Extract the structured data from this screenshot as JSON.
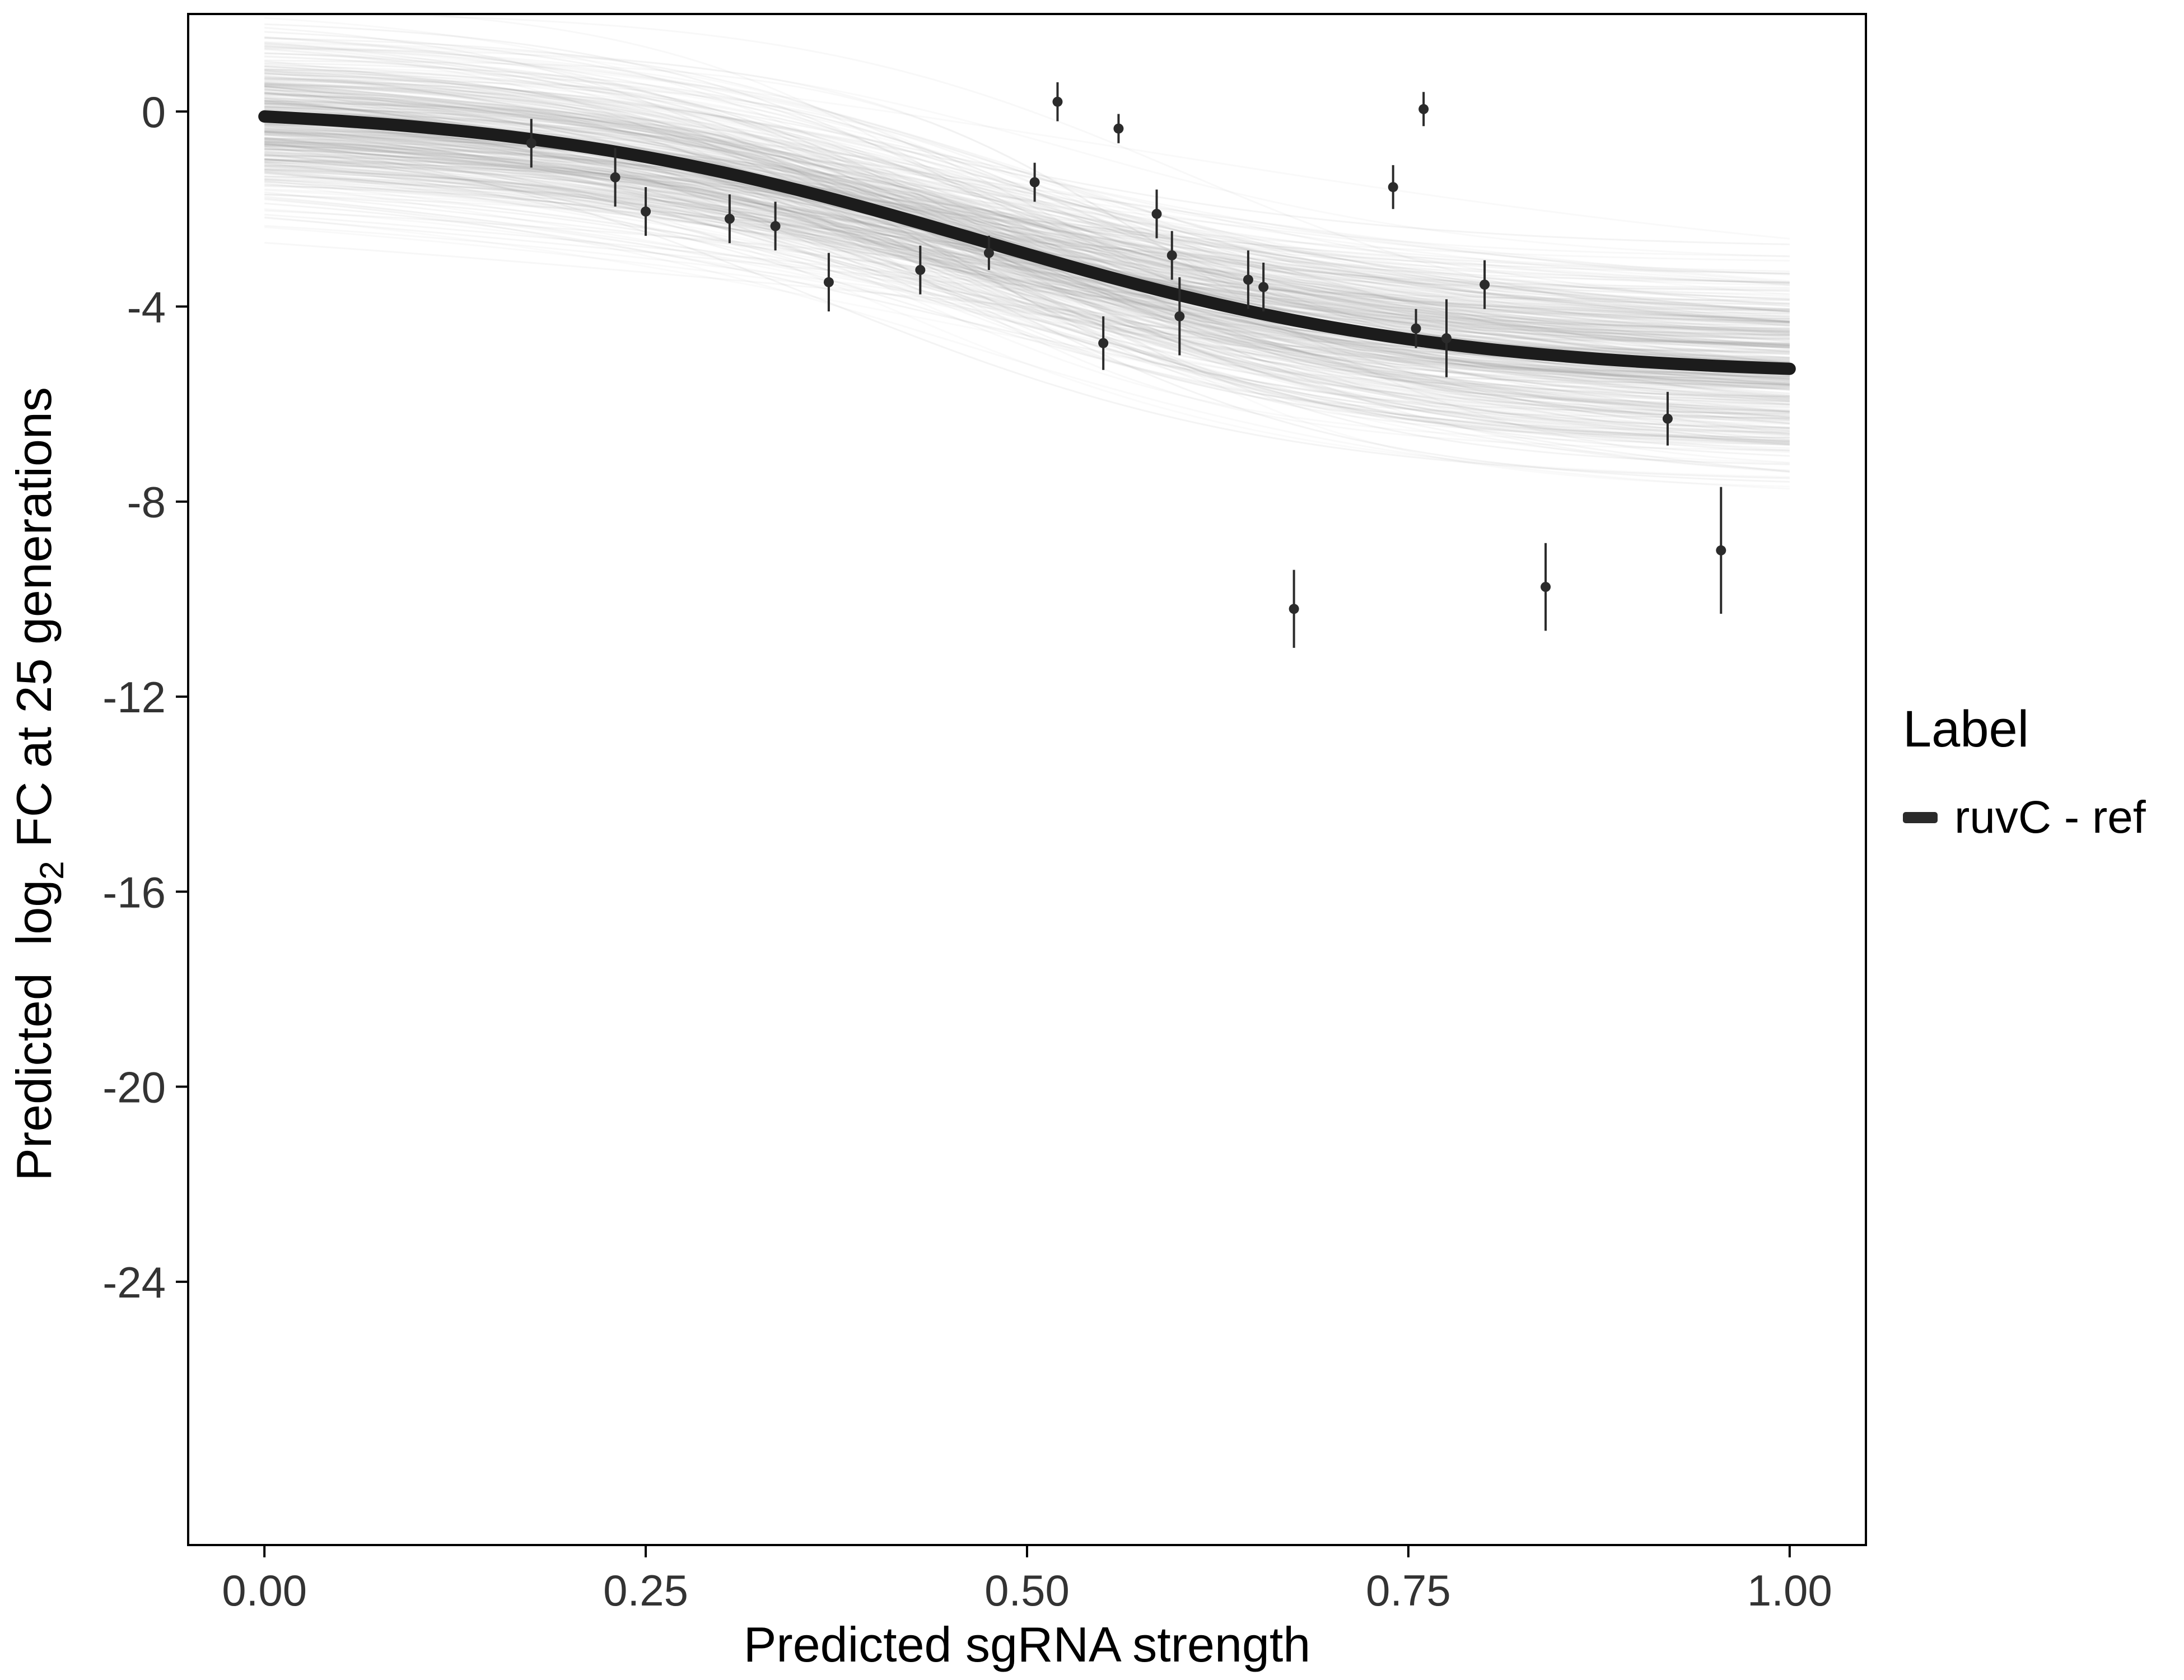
{
  "figure": {
    "background": "#ffffff"
  },
  "chart_data": {
    "type": "scatter",
    "title": "",
    "xlabel": "Predicted sgRNA strength",
    "ylabel": "Predicted log2 FC at 25 generations",
    "ylabel_parts": {
      "prefix": "Predicted  log",
      "sub": "2",
      "suffix": " FC at 25 generations"
    },
    "xlim": [
      -0.05,
      1.05
    ],
    "ylim": [
      -29.4,
      2.0
    ],
    "x_ticks": {
      "values": [
        0,
        0.25,
        0.5,
        0.75,
        1.0
      ],
      "labels": [
        "0.00",
        "0.25",
        "0.50",
        "0.75",
        "1.00"
      ]
    },
    "y_ticks": {
      "values": [
        0,
        -4,
        -8,
        -12,
        -16,
        -20,
        -24
      ],
      "labels": [
        "0",
        "-4",
        "-8",
        "-12",
        "-16",
        "-20",
        "-24"
      ]
    },
    "grid": "off",
    "legend_position": "right",
    "axis": {
      "color": "#000000",
      "line_width": 4,
      "tick_length": 22,
      "tick_font_size": 78,
      "tick_color": "#333333"
    },
    "fit_curve": {
      "type": "sigmoid",
      "top": 0.15,
      "bottom": -5.45,
      "midpoint": 0.47,
      "slope": 6.5,
      "color": "#1c1c1c",
      "width": 22
    },
    "posterior_band": {
      "count": 400,
      "seed": 42,
      "top_sd": 0.85,
      "bottom_sd": 1.05,
      "midpoint_sd": 0.045,
      "slope_sd": 1.8,
      "color": "#8f8f8f",
      "opacity": 0.065,
      "width": 3
    },
    "point_style": {
      "color": "#2b2b2b",
      "radius": 9,
      "errorbar_width": 4
    },
    "points": [
      [
        0.175,
        -0.65,
        -1.15,
        -0.15
      ],
      [
        0.23,
        -1.35,
        -1.95,
        -0.75
      ],
      [
        0.25,
        -2.05,
        -2.55,
        -1.55
      ],
      [
        0.305,
        -2.2,
        -2.7,
        -1.7
      ],
      [
        0.335,
        -2.35,
        -2.85,
        -1.85
      ],
      [
        0.37,
        -3.5,
        -4.1,
        -2.9
      ],
      [
        0.43,
        -3.25,
        -3.75,
        -2.75
      ],
      [
        0.475,
        -2.9,
        -3.25,
        -2.55
      ],
      [
        0.505,
        -1.45,
        -1.85,
        -1.05
      ],
      [
        0.52,
        0.2,
        -0.2,
        0.6
      ],
      [
        0.55,
        -4.75,
        -5.3,
        -4.2
      ],
      [
        0.56,
        -0.35,
        -0.65,
        -0.05
      ],
      [
        0.585,
        -2.1,
        -2.6,
        -1.6
      ],
      [
        0.595,
        -2.95,
        -3.45,
        -2.45
      ],
      [
        0.6,
        -4.2,
        -5.0,
        -3.4
      ],
      [
        0.645,
        -3.45,
        -4.05,
        -2.85
      ],
      [
        0.655,
        -3.6,
        -4.1,
        -3.1
      ],
      [
        0.675,
        -10.2,
        -11.0,
        -9.4
      ],
      [
        0.74,
        -1.55,
        -2.0,
        -1.1
      ],
      [
        0.755,
        -4.45,
        -4.85,
        -4.05
      ],
      [
        0.76,
        0.05,
        -0.3,
        0.4
      ],
      [
        0.775,
        -4.65,
        -5.45,
        -3.85
      ],
      [
        0.8,
        -3.55,
        -4.05,
        -3.05
      ],
      [
        0.84,
        -9.75,
        -10.65,
        -8.85
      ],
      [
        0.92,
        -6.3,
        -6.85,
        -5.75
      ],
      [
        0.955,
        -9.0,
        -10.3,
        -7.7
      ]
    ],
    "legend": {
      "title": "Label",
      "entries": [
        {
          "label": "ruvC - ref",
          "swatch_color": "#2b2b2b"
        }
      ]
    }
  }
}
